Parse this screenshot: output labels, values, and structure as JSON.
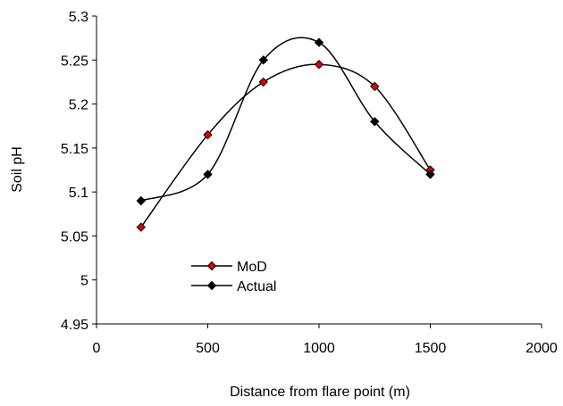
{
  "chart_data": {
    "type": "line",
    "title": "",
    "xlabel": "Distance from flare point (m)",
    "ylabel": "Soil pH",
    "xlim": [
      0,
      2000
    ],
    "ylim": [
      4.95,
      5.3
    ],
    "xticks": [
      "0",
      "500",
      "1000",
      "1500",
      "2000"
    ],
    "yticks": [
      "4.95",
      "5",
      "5.05",
      "5.1",
      "5.15",
      "5.2",
      "5.25",
      "5.3"
    ],
    "grid": false,
    "legend_position": "lower-left",
    "smooth": true,
    "series": [
      {
        "name": "MoD",
        "x": [
          200,
          500,
          750,
          1000,
          1250,
          1500
        ],
        "y": [
          5.06,
          5.165,
          5.225,
          5.245,
          5.22,
          5.125
        ],
        "line_color": "#000000",
        "marker_color": "#e00000",
        "marker": "diamond"
      },
      {
        "name": "Actual",
        "x": [
          200,
          500,
          750,
          1000,
          1250,
          1500
        ],
        "y": [
          5.09,
          5.12,
          5.25,
          5.27,
          5.18,
          5.12
        ],
        "line_color": "#000000",
        "marker_color": "#000000",
        "marker": "diamond"
      }
    ]
  }
}
